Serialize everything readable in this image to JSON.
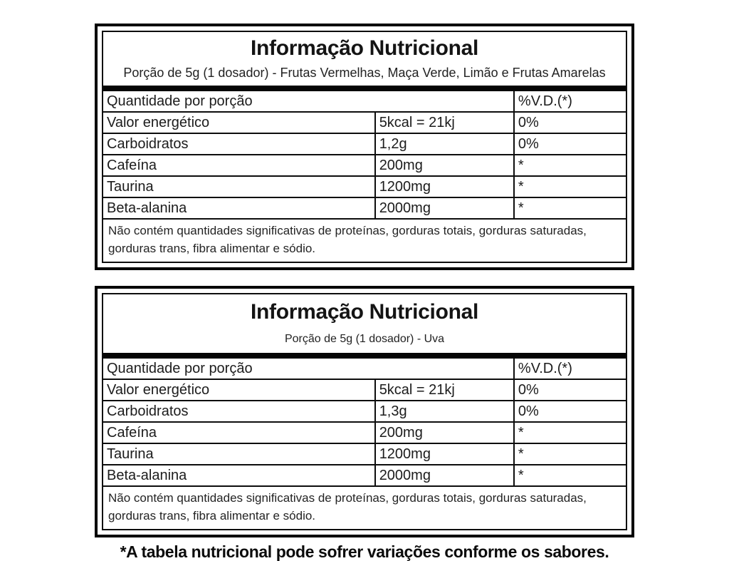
{
  "page": {
    "background": "#ffffff",
    "border_color": "#000000",
    "text_color": "#1f1f1f"
  },
  "tables": [
    {
      "title": "Informação Nutricional",
      "subtitle": "Porção de 5g (1 dosador) - Frutas Vermelhas, Maça Verde, Limão e Frutas Amarelas",
      "header": {
        "label": "Quantidade por porção",
        "vd": "%V.D.(*)"
      },
      "rows": [
        {
          "label": "Valor energético",
          "value": "5kcal = 21kj",
          "vd": "0%"
        },
        {
          "label": "Carboidratos",
          "value": "1,2g",
          "vd": "0%"
        },
        {
          "label": "Cafeína",
          "value": "200mg",
          "vd": "*"
        },
        {
          "label": "Taurina",
          "value": "1200mg",
          "vd": "*"
        },
        {
          "label": "Beta-alanina",
          "value": "2000mg",
          "vd": "*"
        }
      ],
      "note": "Não contém quantidades significativas de proteínas, gorduras totais, gorduras saturadas, gorduras trans, fibra alimentar e sódio."
    },
    {
      "title": "Informação Nutricional",
      "subtitle": "Porção de 5g (1 dosador) - Uva",
      "header": {
        "label": "Quantidade por porção",
        "vd": "%V.D.(*)"
      },
      "rows": [
        {
          "label": "Valor energético",
          "value": "5kcal = 21kj",
          "vd": "0%"
        },
        {
          "label": "Carboidratos",
          "value": "1,3g",
          "vd": "0%"
        },
        {
          "label": "Cafeína",
          "value": "200mg",
          "vd": "*"
        },
        {
          "label": "Taurina",
          "value": "1200mg",
          "vd": "*"
        },
        {
          "label": "Beta-alanina",
          "value": "2000mg",
          "vd": "*"
        }
      ],
      "note": "Não contém quantidades significativas de proteínas, gorduras totais, gorduras saturadas, gorduras trans, fibra alimentar e sódio."
    }
  ],
  "footnote": "*A tabela nutricional pode sofrer variações conforme os sabores."
}
